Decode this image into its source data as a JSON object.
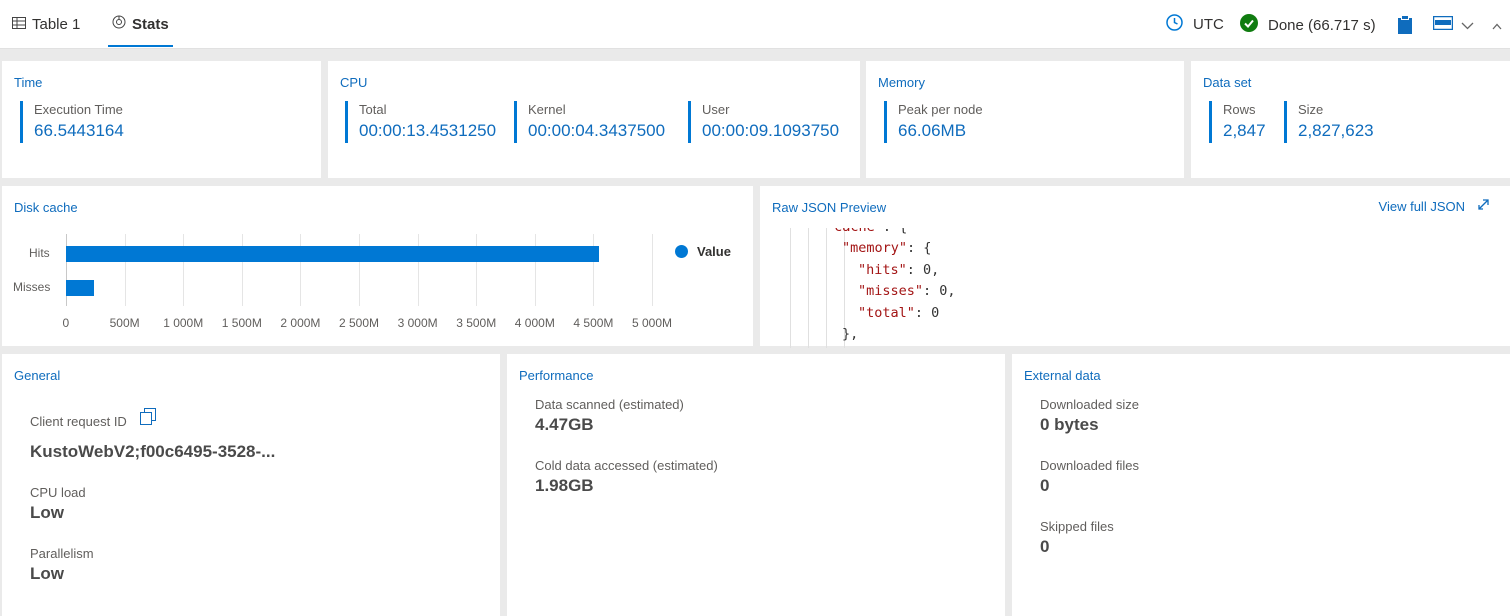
{
  "tabs": [
    {
      "label": "Table 1",
      "icon": "table-icon"
    },
    {
      "label": "Stats",
      "icon": "stats-icon"
    }
  ],
  "toolbar": {
    "timezone": "UTC",
    "status": "Done (66.717 s)"
  },
  "time_panel": {
    "title": "Time",
    "execution_time_label": "Execution Time",
    "execution_time_value": "66.5443164"
  },
  "cpu_panel": {
    "title": "CPU",
    "total_label": "Total",
    "total_value": "00:00:13.4531250",
    "kernel_label": "Kernel",
    "kernel_value": "00:00:04.3437500",
    "user_label": "User",
    "user_value": "00:00:09.1093750"
  },
  "memory_panel": {
    "title": "Memory",
    "peak_label": "Peak per node",
    "peak_value": "66.06MB"
  },
  "dataset_panel": {
    "title": "Data set",
    "rows_label": "Rows",
    "rows_value": "2,847",
    "size_label": "Size",
    "size_value": "2,827,623"
  },
  "disk_cache": {
    "title": "Disk cache"
  },
  "chart_data": {
    "type": "bar",
    "orientation": "horizontal",
    "categories": [
      "Hits",
      "Misses"
    ],
    "series": [
      {
        "name": "Value",
        "values": [
          4550,
          240
        ]
      }
    ],
    "xticks": [
      "0",
      "500M",
      "1 000M",
      "1 500M",
      "2 000M",
      "2 500M",
      "3 000M",
      "3 500M",
      "4 000M",
      "4 500M",
      "5 000M"
    ],
    "xlim": [
      0,
      5000
    ],
    "x_unit": "M",
    "legend": "right",
    "grid": true,
    "color": "#0078d4"
  },
  "json_preview": {
    "title": "Raw JSON Preview",
    "view_full_label": "View full JSON",
    "lines": [
      {
        "key": "\"cache\"",
        "rest": ": {"
      },
      {
        "key": "\"memory\"",
        "rest": ": {"
      },
      {
        "key": "\"hits\"",
        "rest": ": 0,"
      },
      {
        "key": "\"misses\"",
        "rest": ": 0,"
      },
      {
        "key": "\"total\"",
        "rest": ": 0"
      },
      {
        "key": "",
        "rest": "},"
      }
    ]
  },
  "general": {
    "title": "General",
    "client_request_label": "Client request ID",
    "client_request_value": "KustoWebV2;f00c6495-3528-...",
    "cpu_load_label": "CPU load",
    "cpu_load_value": "Low",
    "parallelism_label": "Parallelism",
    "parallelism_value": "Low"
  },
  "performance": {
    "title": "Performance",
    "scanned_label": "Data scanned (estimated)",
    "scanned_value": "4.47GB",
    "cold_label": "Cold data accessed (estimated)",
    "cold_value": "1.98GB"
  },
  "external": {
    "title": "External data",
    "downloaded_size_label": "Downloaded size",
    "downloaded_size_value": "0 bytes",
    "downloaded_files_label": "Downloaded files",
    "downloaded_files_value": "0",
    "skipped_files_label": "Skipped files",
    "skipped_files_value": "0"
  }
}
